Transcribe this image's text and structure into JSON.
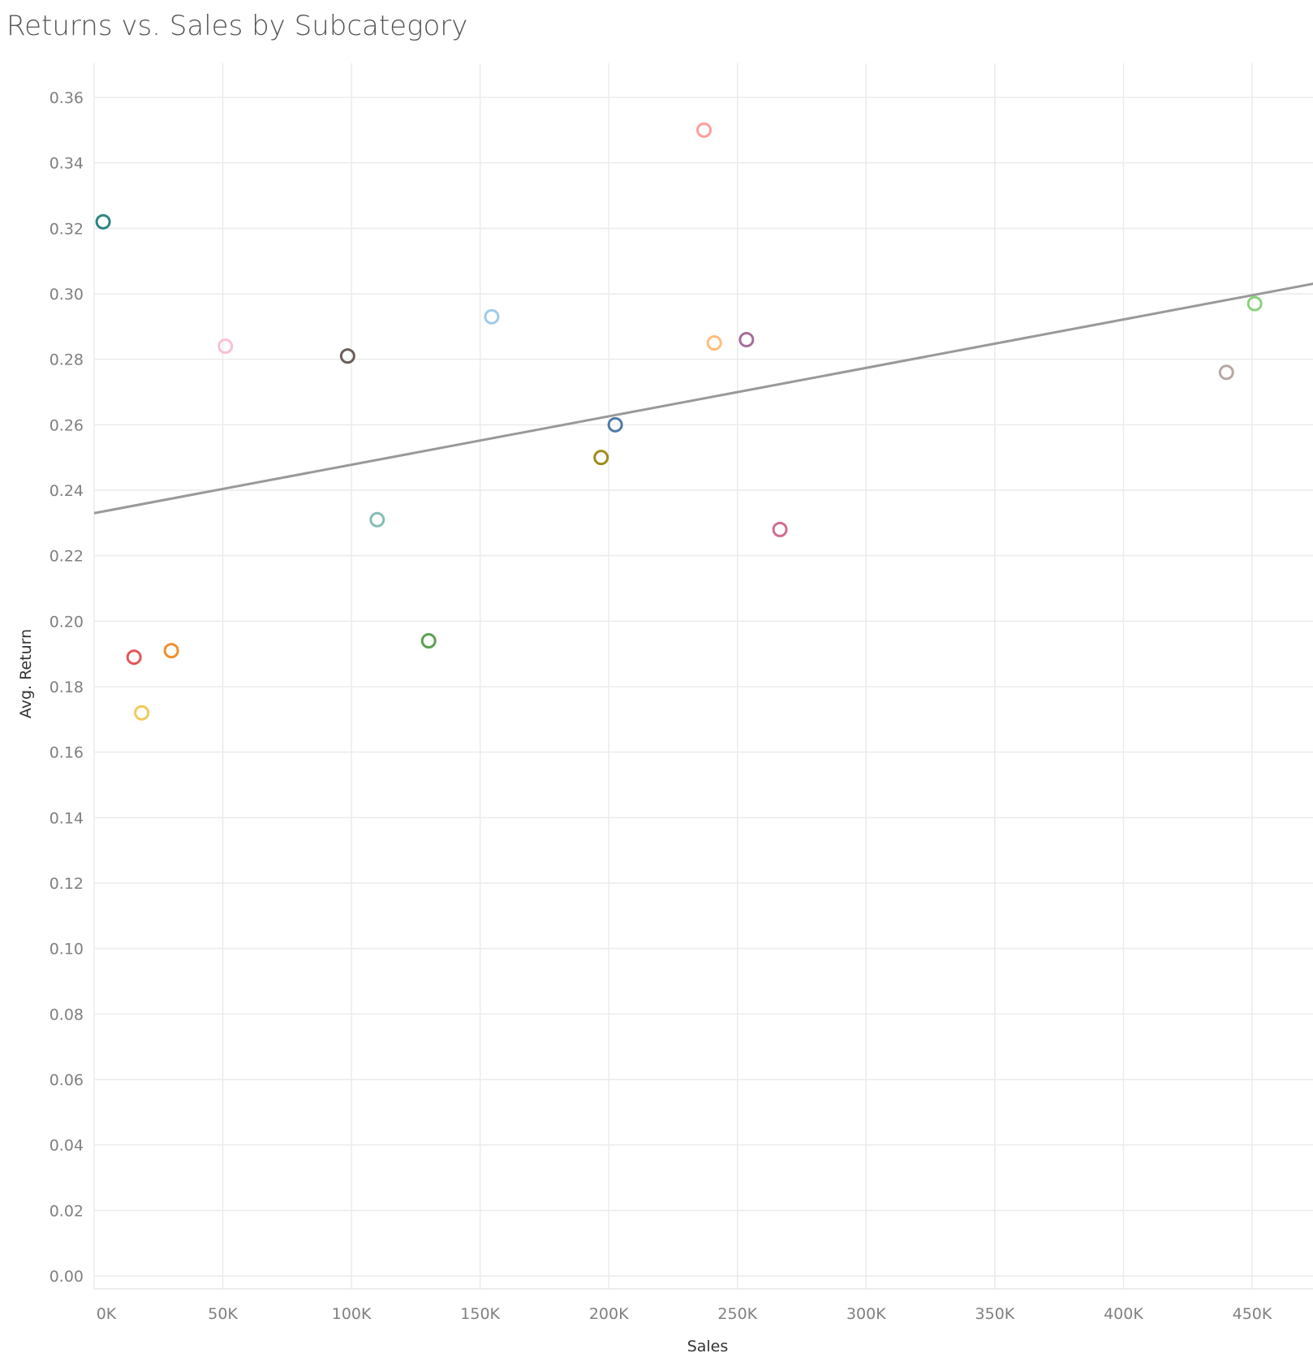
{
  "chart_data": {
    "type": "scatter",
    "title": "Returns vs. Sales by Subcategory",
    "xlabel": "Sales",
    "ylabel": "Avg. Return",
    "xlim": [
      0,
      480000
    ],
    "ylim": [
      0,
      0.37
    ],
    "x_ticks": [
      {
        "value": 0,
        "label": "0K"
      },
      {
        "value": 50000,
        "label": "50K"
      },
      {
        "value": 100000,
        "label": "100K"
      },
      {
        "value": 150000,
        "label": "150K"
      },
      {
        "value": 200000,
        "label": "200K"
      },
      {
        "value": 250000,
        "label": "250K"
      },
      {
        "value": 300000,
        "label": "300K"
      },
      {
        "value": 350000,
        "label": "350K"
      },
      {
        "value": 400000,
        "label": "400K"
      },
      {
        "value": 450000,
        "label": "450K"
      }
    ],
    "y_ticks": [
      {
        "value": 0,
        "label": "0.00"
      },
      {
        "value": 0.02,
        "label": "0.02"
      },
      {
        "value": 0.04,
        "label": "0.04"
      },
      {
        "value": 0.06,
        "label": "0.06"
      },
      {
        "value": 0.08,
        "label": "0.08"
      },
      {
        "value": 0.1,
        "label": "0.10"
      },
      {
        "value": 0.12,
        "label": "0.12"
      },
      {
        "value": 0.14,
        "label": "0.14"
      },
      {
        "value": 0.16,
        "label": "0.16"
      },
      {
        "value": 0.18,
        "label": "0.18"
      },
      {
        "value": 0.2,
        "label": "0.20"
      },
      {
        "value": 0.22,
        "label": "0.22"
      },
      {
        "value": 0.24,
        "label": "0.24"
      },
      {
        "value": 0.26,
        "label": "0.26"
      },
      {
        "value": 0.28,
        "label": "0.28"
      },
      {
        "value": 0.3,
        "label": "0.30"
      },
      {
        "value": 0.32,
        "label": "0.32"
      },
      {
        "value": 0.34,
        "label": "0.34"
      },
      {
        "value": 0.36,
        "label": "0.36"
      }
    ],
    "grid": true,
    "legend": "none",
    "points": [
      {
        "x": 3500,
        "y": 0.322,
        "color": "#2e8582"
      },
      {
        "x": 15500,
        "y": 0.189,
        "color": "#e15759"
      },
      {
        "x": 18500,
        "y": 0.172,
        "color": "#f1c95a"
      },
      {
        "x": 30000,
        "y": 0.191,
        "color": "#f28e2b"
      },
      {
        "x": 51000,
        "y": 0.284,
        "color": "#fabfd2"
      },
      {
        "x": 98500,
        "y": 0.281,
        "color": "#6b5d5a"
      },
      {
        "x": 110000,
        "y": 0.231,
        "color": "#86bcb6"
      },
      {
        "x": 130000,
        "y": 0.194,
        "color": "#59a14f"
      },
      {
        "x": 154500,
        "y": 0.293,
        "color": "#a0cbe8"
      },
      {
        "x": 197000,
        "y": 0.25,
        "color": "#a08a1e"
      },
      {
        "x": 202500,
        "y": 0.26,
        "color": "#4e79a7"
      },
      {
        "x": 237000,
        "y": 0.35,
        "color": "#ff9d9a"
      },
      {
        "x": 241000,
        "y": 0.285,
        "color": "#ffbe7d"
      },
      {
        "x": 253500,
        "y": 0.286,
        "color": "#a66c99"
      },
      {
        "x": 266500,
        "y": 0.228,
        "color": "#d16b91"
      },
      {
        "x": 440000,
        "y": 0.276,
        "color": "#b6a8a2"
      },
      {
        "x": 451000,
        "y": 0.297,
        "color": "#8cd17d"
      }
    ],
    "trend_line": {
      "x": [
        0,
        480000
      ],
      "y": [
        0.233,
        0.304
      ],
      "color": "#999999"
    }
  }
}
